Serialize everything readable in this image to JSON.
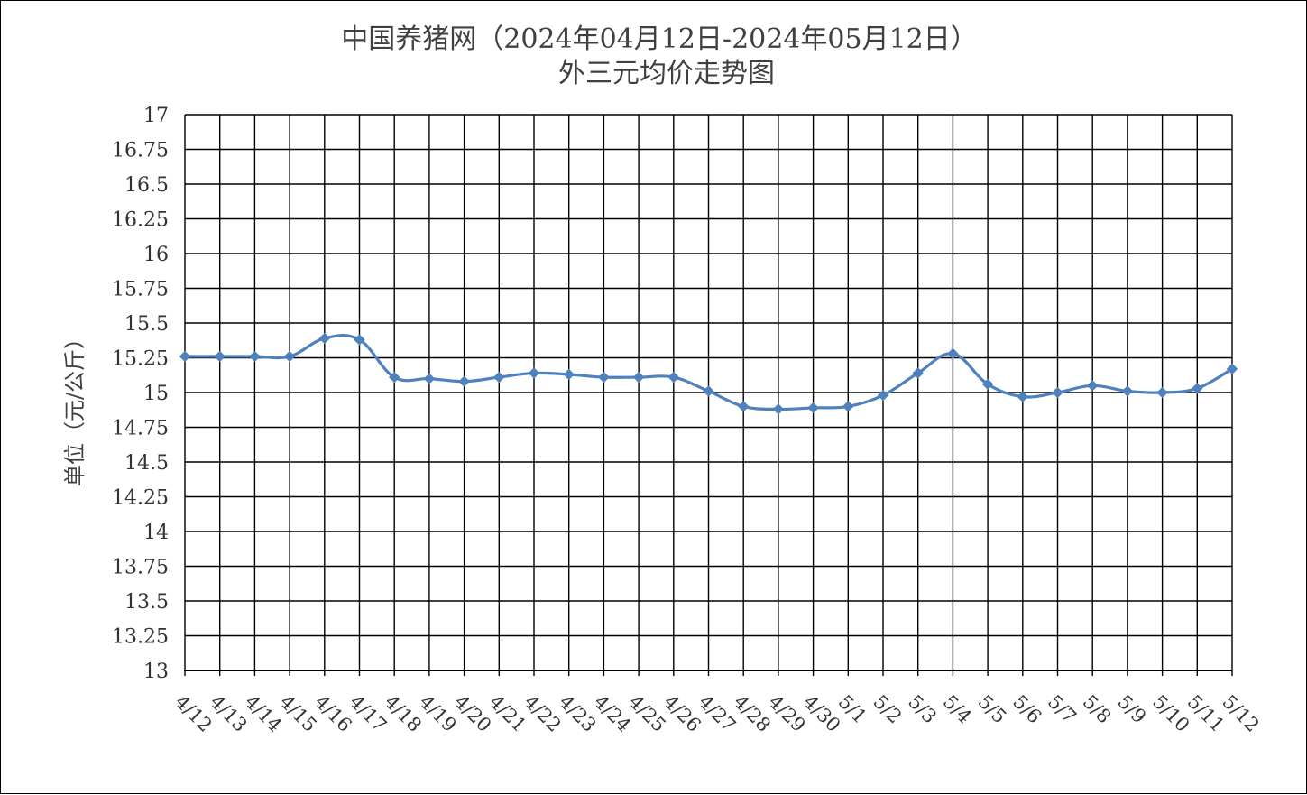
{
  "chart_data": {
    "type": "line",
    "title_line1": "中国养猪网（2024年04月12日-2024年05月12日）",
    "title_line2": "外三元均价走势图",
    "xlabel": "",
    "ylabel": "单位（元/公斤）",
    "ylim": [
      13,
      17
    ],
    "y_ticks": [
      "17",
      "16.75",
      "16.5",
      "16.25",
      "16",
      "15.75",
      "15.5",
      "15.25",
      "15",
      "14.75",
      "14.5",
      "14.25",
      "14",
      "13.75",
      "13.5",
      "13.25",
      "13"
    ],
    "grid": true,
    "legend": "none",
    "categories": [
      "4/12",
      "4/13",
      "4/14",
      "4/15",
      "4/16",
      "4/17",
      "4/18",
      "4/19",
      "4/20",
      "4/21",
      "4/22",
      "4/23",
      "4/24",
      "4/25",
      "4/26",
      "4/27",
      "4/28",
      "4/29",
      "4/30",
      "5/1",
      "5/2",
      "5/3",
      "5/4",
      "5/5",
      "5/6",
      "5/7",
      "5/8",
      "5/9",
      "5/10",
      "5/11",
      "5/12"
    ],
    "series": [
      {
        "values": [
          15.26,
          15.26,
          15.26,
          15.26,
          15.39,
          15.38,
          15.11,
          15.1,
          15.08,
          15.11,
          15.14,
          15.13,
          15.11,
          15.11,
          15.11,
          15.01,
          14.9,
          14.88,
          14.89,
          14.9,
          14.98,
          15.14,
          15.28,
          15.06,
          14.97,
          15.0,
          15.05,
          15.01,
          15.0,
          15.03,
          15.17
        ],
        "color": "#4f81bd"
      }
    ]
  }
}
